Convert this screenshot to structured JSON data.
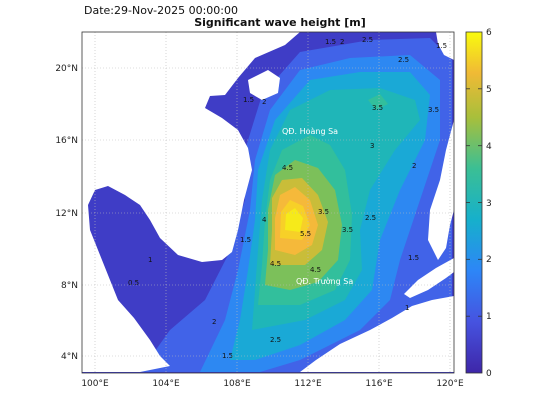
{
  "header": {
    "date_label": "Date:29-Nov-2025 00:00:00",
    "title": "Significant wave height [m]"
  },
  "map": {
    "lon_ticks": [
      "100°E",
      "104°E",
      "108°E",
      "112°E",
      "116°E",
      "120°E"
    ],
    "lat_ticks": [
      "20°N",
      "16°N",
      "12°N",
      "8°N",
      "4°N"
    ],
    "places": [
      "QĐ. Hoàng Sa",
      "QĐ. Trường Sa"
    ],
    "contour_levels": [
      "0.5",
      "1",
      "1.5",
      "2",
      "2.5",
      "3",
      "3.5",
      "4",
      "4.5",
      "5",
      "5.5"
    ]
  },
  "colorbar": {
    "ticks": [
      "6",
      "5",
      "4",
      "3",
      "2",
      "1",
      "0"
    ]
  },
  "colors": {
    "land": "#ffffff",
    "ocean_low": "#3e26a8",
    "ocean_high": "#f9fb0e",
    "colormap": "parula"
  }
}
